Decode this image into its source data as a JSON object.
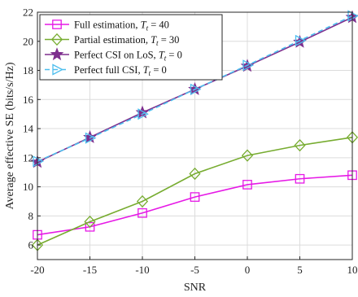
{
  "chart_data": {
    "type": "line",
    "title": "",
    "xlabel": "SNR",
    "ylabel": "Average effective SE (bits/s/Hz)",
    "x": [
      -20,
      -15,
      -10,
      -5,
      0,
      5,
      10
    ],
    "xlim": [
      -20,
      10
    ],
    "ylim": [
      5,
      22
    ],
    "xticks": [
      "-20",
      "-15",
      "-10",
      "-5",
      "0",
      "5",
      "10"
    ],
    "yticks": [
      "6",
      "8",
      "10",
      "12",
      "14",
      "16",
      "18",
      "20",
      "22"
    ],
    "grid": true,
    "legend_position": "top-left",
    "series": [
      {
        "name": "Full estimation, T_t = 40",
        "color": "#e619e6",
        "marker": "square",
        "dash": "solid",
        "values": [
          6.7,
          7.25,
          8.2,
          9.3,
          10.15,
          10.55,
          10.8
        ]
      },
      {
        "name": "Partial estimation, T_t = 30",
        "color": "#77ac30",
        "marker": "diamond",
        "dash": "solid",
        "values": [
          6.0,
          7.6,
          9.0,
          10.9,
          12.15,
          12.85,
          13.4
        ]
      },
      {
        "name": "Perfect CSI on LoS, T_t = 0",
        "color": "#7e2f8e",
        "marker": "star",
        "dash": "solid",
        "values": [
          11.7,
          13.4,
          15.1,
          16.7,
          18.3,
          19.95,
          21.65
        ]
      },
      {
        "name": "Perfect full CSI, T_t = 0",
        "color": "#4dbeee",
        "marker": "triangle-right",
        "dash": "dashed",
        "values": [
          11.75,
          13.35,
          15.0,
          16.7,
          18.35,
          20.05,
          21.75
        ]
      }
    ]
  }
}
